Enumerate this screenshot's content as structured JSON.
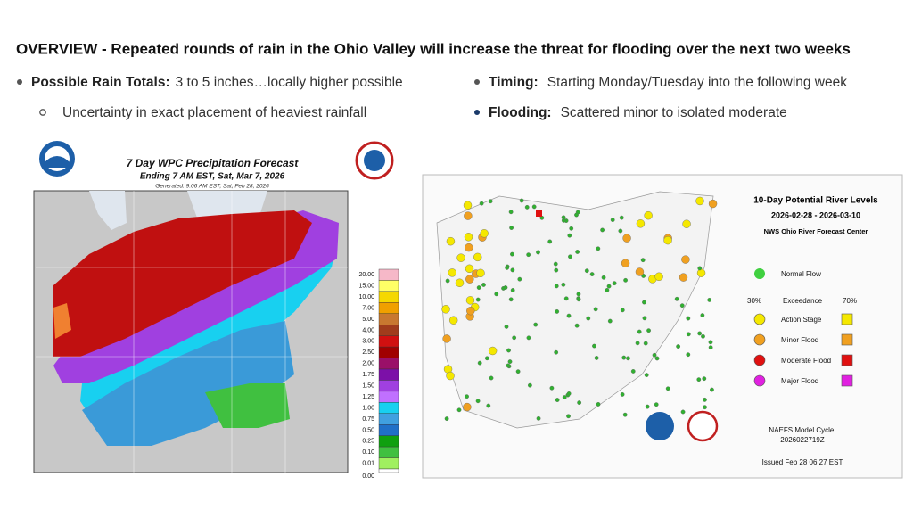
{
  "header": {
    "title": "OVERVIEW - Repeated rounds of rain in the Ohio Valley will increase the threat for flooding over the next two weeks"
  },
  "bullets": [
    {
      "label": "Possible Rain Totals:",
      "text": "3 to 5 inches…locally higher possible",
      "sub": "Uncertainty in exact placement of heaviest rainfall"
    },
    {
      "label": "Timing:",
      "text": "Starting Monday/Tuesday into the following week"
    },
    {
      "label": "Flooding:",
      "text": "Scattered minor to isolated moderate"
    }
  ],
  "precip_map": {
    "title": "7 Day WPC Precipitation Forecast",
    "subtitle": "Ending 7 AM EST, Sat, Mar 7, 2026",
    "generated": "Generated: 9:06 AM EST, Sat, Feb 28, 2026",
    "scale_labels": [
      "20.00",
      "15.00",
      "10.00",
      "7.00",
      "5.00",
      "4.00",
      "3.00",
      "2.50",
      "2.00",
      "1.75",
      "1.50",
      "1.25",
      "1.00",
      "0.75",
      "0.50",
      "0.25",
      "0.10",
      "0.01",
      "0.00"
    ],
    "scale_colors": [
      "#f6b8c8",
      "#ffff66",
      "#f5d800",
      "#f0a000",
      "#c87830",
      "#a03c1c",
      "#d01010",
      "#a00000",
      "#9a1068",
      "#7c10a8",
      "#a040e0",
      "#c070ff",
      "#18d0f0",
      "#40a0e0",
      "#2070c8",
      "#10a010",
      "#40c040",
      "#a0f060"
    ]
  },
  "river_map": {
    "title": "10-Day Potential River Levels",
    "dates": "2026-02-28 - 2026-03-10",
    "source": "NWS Ohio River Forecast Center",
    "normal": "Normal Flow",
    "pct_low": "30%",
    "exceedance": "Exceedance",
    "pct_high": "70%",
    "categories": [
      {
        "name": "Action Stage",
        "color": "#f5e800"
      },
      {
        "name": "Minor Flood",
        "color": "#f0a020"
      },
      {
        "name": "Moderate Flood",
        "color": "#e01010"
      },
      {
        "name": "Major Flood",
        "color": "#e020e0"
      }
    ],
    "model_label": "NAEFS Model Cycle:",
    "model_cycle": "2026022719Z",
    "issued": "Issued Feb 28 06:27 EST"
  }
}
